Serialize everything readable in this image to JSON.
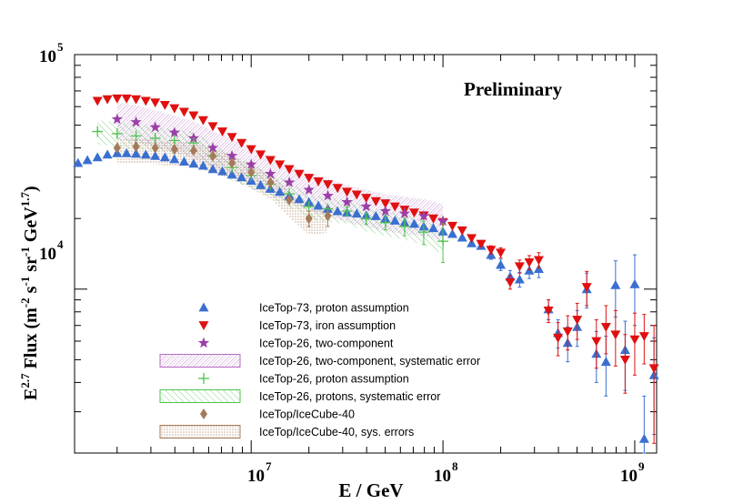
{
  "chart_data": {
    "type": "scatter",
    "xscale": "log",
    "yscale": "log",
    "xlim": [
      1200000.0,
      1300000000.0
    ],
    "ylim": [
      2000,
      100000
    ],
    "xlabel": "E / GeV",
    "ylabel_main": "E",
    "ylabel_sup": "2.7",
    "ylabel_rest": " Flux (m",
    "ylabel_sup2": "-2",
    "ylabel_s": " s",
    "ylabel_sup3": "-1",
    "ylabel_sr": " sr",
    "ylabel_sup4": "-1",
    "ylabel_gev": " GeV",
    "ylabel_sup5": "1.7",
    "ylabel_close": ")",
    "annotation": "Preliminary",
    "x_ticks": [
      {
        "value": 10000000.0,
        "base": "10",
        "exp": "7"
      },
      {
        "value": 100000000.0,
        "base": "10",
        "exp": "8"
      },
      {
        "value": 1000000000.0,
        "base": "10",
        "exp": "9"
      }
    ],
    "y_ticks": [
      {
        "value": 10000.0,
        "base": "10",
        "exp": "4"
      },
      {
        "value": 100000.0,
        "base": "10",
        "exp": "5"
      }
    ],
    "legend": [
      {
        "label": "IceTop-73, proton assumption",
        "marker": "triangle-up",
        "color": "#3a6fd0"
      },
      {
        "label": "IceTop-73, iron assumption",
        "marker": "triangle-down",
        "color": "#e01010"
      },
      {
        "label": "IceTop-26, two-component",
        "marker": "star",
        "color": "#9b3fa8"
      },
      {
        "label": "IceTop-26, two-component, systematic error",
        "marker": "band",
        "color": "#b56cc2"
      },
      {
        "label": "IceTop-26, proton assumption",
        "marker": "cross",
        "color": "#4fc24f"
      },
      {
        "label": "IceTop-26, protons, systematic error",
        "marker": "band",
        "color": "#4fc24f"
      },
      {
        "label": "IceTop/IceCube-40",
        "marker": "diamond",
        "color": "#a57a5a"
      },
      {
        "label": "IceTop/IceCube-40, sys. errors",
        "marker": "band",
        "color": "#a57a5a"
      }
    ],
    "series": [
      {
        "name": "IceTop-73, proton assumption",
        "color": "#3a6fd0",
        "marker": "triangle-up",
        "x": [
          1250000.0,
          1400000.0,
          1580000.0,
          1780000.0,
          2000000.0,
          2240000.0,
          2510000.0,
          2820000.0,
          3160000.0,
          3550000.0,
          3980000.0,
          4470000.0,
          5010000.0,
          5620000.0,
          6310000.0,
          7080000.0,
          7940000.0,
          8910000.0,
          10000000.0,
          11200000.0,
          12600000.0,
          14100000.0,
          15800000.0,
          17800000.0,
          20000000.0,
          22400000.0,
          25100000.0,
          28200000.0,
          31600000.0,
          35500000.0,
          39800000.0,
          44700000.0,
          50100000.0,
          56200000.0,
          63100000.0,
          70800000.0,
          79400000.0,
          89100000.0,
          100000000.0,
          112000000.0,
          126000000.0,
          141000000.0,
          158000000.0,
          178000000.0,
          200000000.0,
          224000000.0,
          251000000.0,
          282000000.0,
          316000000.0,
          355000000.0,
          398000000.0,
          447000000.0,
          501000000.0,
          562000000.0,
          631000000.0,
          708000000.0,
          794000000.0,
          891000000.0,
          1000000000.0,
          1120000000.0,
          1260000000.0
        ],
        "y": [
          34500,
          35500,
          36500,
          37500,
          38000,
          38000,
          37800,
          37500,
          37000,
          36500,
          35800,
          35000,
          34300,
          33600,
          32500,
          31800,
          30800,
          30000,
          29000,
          27800,
          26800,
          26000,
          25000,
          24200,
          23500,
          22700,
          22000,
          21500,
          21200,
          21000,
          20600,
          20500,
          20000,
          19600,
          19200,
          19000,
          18500,
          18200,
          17600,
          17200,
          16600,
          15700,
          15300,
          14000,
          12700,
          11300,
          11000,
          12000,
          12200,
          8200,
          6500,
          5900,
          6900,
          10000,
          5300,
          4900,
          10400,
          5500,
          10500,
          2300,
          4300
        ],
        "err": [
          0,
          0,
          0,
          0,
          0,
          0,
          0,
          0,
          0,
          0,
          0,
          0,
          0,
          0,
          0,
          0,
          0,
          0,
          0,
          0,
          0,
          0,
          0,
          0,
          0,
          0,
          0,
          0,
          0,
          0,
          0,
          0,
          0,
          0,
          0,
          0,
          0,
          0,
          0,
          0,
          0,
          0,
          0,
          600,
          700,
          700,
          800,
          900,
          1000,
          800,
          900,
          1000,
          1200,
          1700,
          1300,
          1400,
          2800,
          1800,
          3500,
          1200,
          1900
        ]
      },
      {
        "name": "IceTop-73, iron assumption",
        "color": "#e01010",
        "marker": "triangle-down",
        "x": [
          1580000.0,
          1780000.0,
          2000000.0,
          2240000.0,
          2510000.0,
          2820000.0,
          3160000.0,
          3550000.0,
          3980000.0,
          4470000.0,
          5010000.0,
          5620000.0,
          6310000.0,
          7080000.0,
          7940000.0,
          8910000.0,
          10000000.0,
          11200000.0,
          12600000.0,
          14100000.0,
          15800000.0,
          17800000.0,
          20000000.0,
          22400000.0,
          25100000.0,
          28200000.0,
          31600000.0,
          35500000.0,
          39800000.0,
          44700000.0,
          50100000.0,
          56200000.0,
          63100000.0,
          70800000.0,
          79400000.0,
          89100000.0,
          100000000.0,
          112000000.0,
          126000000.0,
          141000000.0,
          158000000.0,
          178000000.0,
          200000000.0,
          224000000.0,
          251000000.0,
          282000000.0,
          316000000.0,
          355000000.0,
          398000000.0,
          447000000.0,
          501000000.0,
          562000000.0,
          631000000.0,
          708000000.0,
          794000000.0,
          891000000.0,
          1000000000.0,
          1120000000.0,
          1260000000.0
        ],
        "y": [
          63500,
          64500,
          65000,
          65000,
          64500,
          63500,
          62500,
          61000,
          59000,
          57000,
          55000,
          52500,
          49500,
          47000,
          44500,
          42000,
          39500,
          37500,
          35500,
          34000,
          32500,
          31000,
          29800,
          28800,
          28000,
          27000,
          26000,
          25300,
          24500,
          23700,
          23200,
          22500,
          21800,
          21200,
          20600,
          20000,
          19300,
          18600,
          17800,
          16500,
          15600,
          14700,
          14300,
          10700,
          12500,
          13000,
          13300,
          8100,
          6200,
          6600,
          7400,
          10200,
          6000,
          6900,
          6400,
          5000,
          6100,
          6300,
          4600
        ],
        "err": [
          0,
          0,
          0,
          0,
          0,
          0,
          0,
          0,
          0,
          0,
          0,
          0,
          0,
          0,
          0,
          0,
          0,
          0,
          0,
          0,
          0,
          0,
          0,
          0,
          0,
          0,
          0,
          0,
          0,
          0,
          0,
          0,
          0,
          0,
          0,
          0,
          0,
          0,
          0,
          0,
          0,
          600,
          700,
          700,
          800,
          900,
          1000,
          900,
          1000,
          1100,
          1300,
          1700,
          1400,
          1600,
          1700,
          1400,
          1800,
          1500,
          2400
        ]
      },
      {
        "name": "IceTop-26, two-component",
        "color": "#9b3fa8",
        "marker": "star",
        "x": [
          2000000.0,
          2510000.0,
          3160000.0,
          3980000.0,
          5010000.0,
          6310000.0,
          7940000.0,
          10000000.0,
          12600000.0,
          15800000.0,
          20000000.0,
          25100000.0,
          31600000.0,
          39800000.0,
          50100000.0,
          63100000.0,
          79400000.0,
          100000000.0
        ],
        "y": [
          53000,
          51500,
          49000,
          46500,
          44000,
          40000,
          37000,
          34000,
          31000,
          28500,
          26500,
          25000,
          23500,
          22500,
          21500,
          21000,
          20500,
          19500
        ],
        "err": [
          0,
          0,
          0,
          0,
          0,
          0,
          0,
          0,
          0,
          0,
          0,
          0,
          0,
          0,
          0,
          0,
          0,
          0
        ]
      },
      {
        "name": "IceTop-26, proton assumption",
        "color": "#4fc24f",
        "marker": "cross",
        "x": [
          1580000.0,
          2000000.0,
          2510000.0,
          3160000.0,
          3980000.0,
          5010000.0,
          6310000.0,
          7940000.0,
          10000000.0,
          12600000.0,
          15800000.0,
          20000000.0,
          25100000.0,
          31600000.0,
          39800000.0,
          50100000.0,
          63100000.0,
          79400000.0,
          100000000.0
        ],
        "y": [
          47000,
          46000,
          45000,
          44000,
          43000,
          42000,
          37000,
          33000,
          30500,
          28000,
          25500,
          22500,
          22000,
          21500,
          20000,
          19200,
          18500,
          17500,
          16000
        ],
        "err": [
          0,
          0,
          0,
          0,
          0,
          0,
          0,
          0,
          0,
          0,
          0,
          0,
          0,
          900,
          1100,
          1300,
          1600,
          2000,
          3000
        ]
      },
      {
        "name": "IceTop/IceCube-40",
        "color": "#a57a5a",
        "marker": "diamond",
        "x": [
          2000000.0,
          2510000.0,
          3160000.0,
          3980000.0,
          5010000.0,
          6310000.0,
          7940000.0,
          10000000.0,
          12600000.0,
          15800000.0,
          20000000.0,
          25100000.0
        ],
        "y": [
          40000,
          40500,
          40000,
          39500,
          39000,
          37000,
          34500,
          31500,
          28500,
          24000,
          20000,
          20500
        ],
        "err": [
          0,
          0,
          0,
          0,
          0,
          0,
          0,
          0,
          0,
          0,
          1500,
          2000
        ]
      }
    ]
  }
}
